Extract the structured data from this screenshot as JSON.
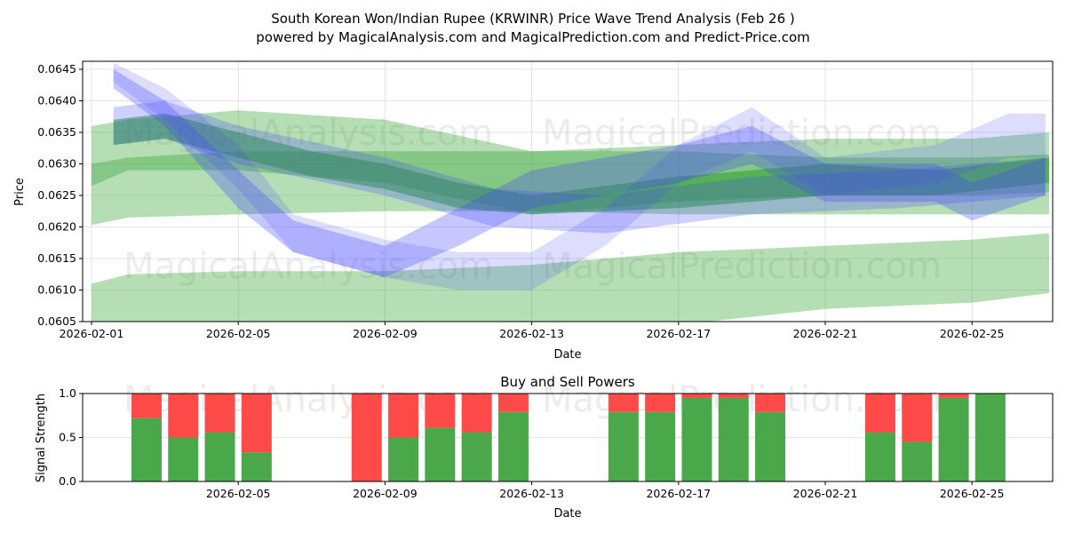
{
  "title_line1": "South Korean Won/Indian Rupee (KRWINR) Price Wave Trend Analysis (Feb 26 )",
  "title_line2": "powered by MagicalAnalysis.com and MagicalPrediction.com and Predict-Price.com",
  "watermarks": [
    "MagicalAnalysis.com",
    "MagicalPrediction.com"
  ],
  "colors": {
    "green_band": "#2ca02c",
    "blue_band": "#4444ff",
    "buy": "#4aa84a",
    "sell": "#ff4a4a"
  },
  "chart_data": [
    {
      "type": "area",
      "title": "",
      "xlabel": "Date",
      "ylabel": "Price",
      "ylim": [
        0.0605,
        0.06465
      ],
      "x_start_date": "2026-02-01",
      "xlim_days": [
        -0.25,
        26.2
      ],
      "x_ticks": [
        "2026-02-01",
        "2026-02-05",
        "2026-02-09",
        "2026-02-13",
        "2026-02-17",
        "2026-02-21",
        "2026-02-25"
      ],
      "y_ticks": [
        "0.0605",
        "0.0610",
        "0.0615",
        "0.0620",
        "0.0625",
        "0.0630",
        "0.0635",
        "0.0640",
        "0.0645"
      ],
      "grid": true,
      "bands": [
        {
          "name": "green-upper",
          "color": "green",
          "opacity": 0.35,
          "x": [
            0,
            1,
            4,
            8,
            12,
            16,
            20,
            24,
            26.1
          ],
          "upper": [
            0.0636,
            0.0637,
            0.06385,
            0.0637,
            0.0632,
            0.0633,
            0.0634,
            0.0634,
            0.0635
          ],
          "lower": [
            0.06265,
            0.0629,
            0.0629,
            0.0627,
            0.0622,
            0.0624,
            0.0625,
            0.0625,
            0.06255
          ]
        },
        {
          "name": "green-middle",
          "color": "green",
          "opacity": 0.35,
          "x": [
            0,
            1,
            4,
            8,
            12,
            16,
            20,
            24,
            26.1
          ],
          "upper": [
            0.063,
            0.0631,
            0.0632,
            0.0632,
            0.0632,
            0.0632,
            0.0631,
            0.0631,
            0.06315
          ],
          "lower": [
            0.06203,
            0.06215,
            0.0622,
            0.06225,
            0.06225,
            0.0622,
            0.0622,
            0.0622,
            0.0622
          ]
        },
        {
          "name": "green-lower",
          "color": "green",
          "opacity": 0.35,
          "x": [
            0,
            1,
            4,
            8,
            12,
            16,
            20,
            24,
            26.1
          ],
          "upper": [
            0.0611,
            0.06125,
            0.0613,
            0.0613,
            0.0614,
            0.0616,
            0.0617,
            0.0618,
            0.0619
          ],
          "lower": [
            0.06,
            0.06,
            0.06,
            0.0601,
            0.0602,
            0.06045,
            0.0607,
            0.0608,
            0.06095
          ]
        },
        {
          "name": "green-trend",
          "color": "green",
          "opacity": 0.55,
          "x": [
            0.6,
            2,
            4,
            6,
            8,
            10,
            12,
            16,
            20,
            23,
            26.1
          ],
          "upper": [
            0.0637,
            0.0638,
            0.0635,
            0.0632,
            0.063,
            0.0627,
            0.0625,
            0.0628,
            0.063,
            0.0629,
            0.0631
          ],
          "lower": [
            0.0633,
            0.0634,
            0.0631,
            0.0628,
            0.0626,
            0.0623,
            0.0622,
            0.0623,
            0.0625,
            0.0625,
            0.0627
          ]
        },
        {
          "name": "blue-wave-1",
          "color": "blue",
          "opacity": 0.3,
          "x": [
            0.6,
            2,
            4,
            5.5,
            8,
            10,
            12,
            16,
            18,
            20,
            23,
            24,
            26
          ],
          "upper": [
            0.0645,
            0.064,
            0.0629,
            0.0621,
            0.0617,
            0.0623,
            0.0629,
            0.0633,
            0.0636,
            0.063,
            0.063,
            0.0627,
            0.0631
          ],
          "lower": [
            0.0642,
            0.0636,
            0.0623,
            0.0616,
            0.0612,
            0.0617,
            0.0623,
            0.0627,
            0.063,
            0.0624,
            0.0624,
            0.0621,
            0.0625
          ]
        },
        {
          "name": "blue-wave-2",
          "color": "blue",
          "opacity": 0.25,
          "x": [
            0.6,
            2,
            4,
            8,
            11,
            14,
            18,
            22,
            26
          ],
          "upper": [
            0.0639,
            0.064,
            0.0636,
            0.0631,
            0.0626,
            0.0625,
            0.0628,
            0.0629,
            0.0631
          ],
          "lower": [
            0.0633,
            0.0634,
            0.063,
            0.0625,
            0.062,
            0.0619,
            0.0622,
            0.0623,
            0.0625
          ]
        },
        {
          "name": "blue-wave-3",
          "color": "blue",
          "opacity": 0.18,
          "x": [
            0.6,
            2,
            4,
            5.5,
            8,
            10,
            12,
            14,
            16,
            18,
            20,
            23,
            25,
            26
          ],
          "upper": [
            0.0646,
            0.0642,
            0.0633,
            0.0622,
            0.0618,
            0.0616,
            0.0616,
            0.0623,
            0.0633,
            0.0639,
            0.0631,
            0.0633,
            0.0638,
            0.0638
          ],
          "lower": [
            0.0643,
            0.0637,
            0.0626,
            0.0616,
            0.0612,
            0.061,
            0.061,
            0.0617,
            0.0627,
            0.0632,
            0.0625,
            0.0627,
            0.0631,
            0.0631
          ]
        }
      ]
    },
    {
      "type": "bar",
      "title": "Buy and Sell Powers",
      "xlabel": "Date",
      "ylabel": "Signal Strength",
      "ylim": [
        0,
        1
      ],
      "y_ticks": [
        "0.0",
        "0.5",
        "1.0"
      ],
      "x_ticks": [
        "2026-02-05",
        "2026-02-09",
        "2026-02-13",
        "2026-02-17",
        "2026-02-21",
        "2026-02-25"
      ],
      "categories": [
        "2026-02-03",
        "2026-02-04",
        "2026-02-05",
        "2026-02-06",
        "2026-02-09",
        "2026-02-10",
        "2026-02-11",
        "2026-02-12",
        "2026-02-13",
        "2026-02-16",
        "2026-02-17",
        "2026-02-18",
        "2026-02-19",
        "2026-02-20",
        "2026-02-23",
        "2026-02-24",
        "2026-02-25",
        "2026-02-26"
      ],
      "series": [
        {
          "name": "Buy",
          "values": [
            0.72,
            0.5,
            0.56,
            0.33,
            0.0,
            0.5,
            0.61,
            0.56,
            0.79,
            0.79,
            0.79,
            0.95,
            0.95,
            0.79,
            0.56,
            0.45,
            0.95,
            1.0
          ]
        },
        {
          "name": "Sell",
          "values": [
            0.28,
            0.5,
            0.44,
            0.67,
            1.0,
            0.5,
            0.39,
            0.44,
            0.21,
            0.21,
            0.21,
            0.05,
            0.05,
            0.21,
            0.44,
            0.55,
            0.05,
            0.0
          ]
        }
      ]
    }
  ]
}
